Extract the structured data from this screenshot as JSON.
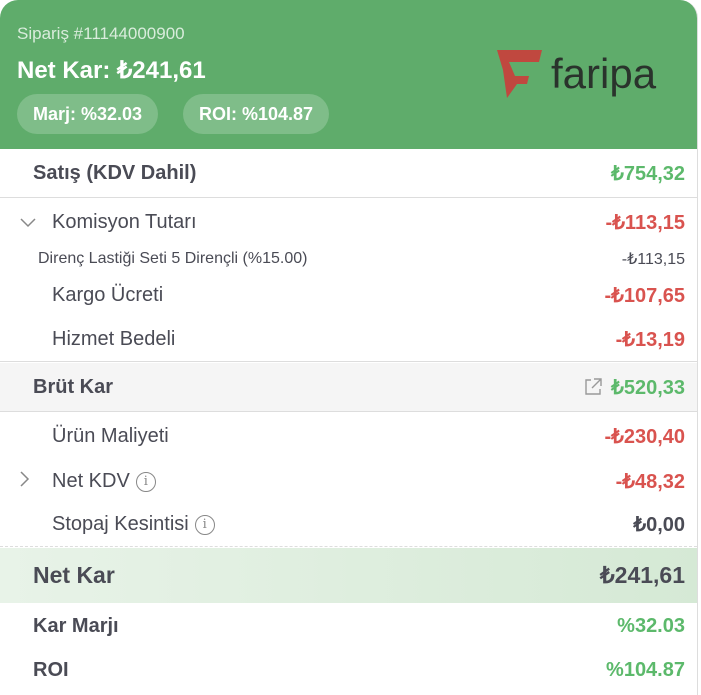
{
  "header": {
    "order": "Sipariş #11144000900",
    "net_profit": "Net Kar: ₺241,61",
    "margin_pill": "Marj: %32.03",
    "roi_pill": "ROI: %104.87",
    "logo_text": "faripa",
    "bg_color": "#5fac6b"
  },
  "rows": {
    "sales": {
      "label": "Satış (KDV Dahil)",
      "value": "₺754,32"
    },
    "commission": {
      "label": "Komisyon Tutarı",
      "value": "-₺113,15",
      "icon": "chevron-down-icon"
    },
    "commission_item": {
      "label": "Direnç Lastiği Seti 5 Dirençli (%15.00)",
      "value": "-₺113,15"
    },
    "shipping": {
      "label": "Kargo Ücreti",
      "value": "-₺107,65"
    },
    "service": {
      "label": "Hizmet Bedeli",
      "value": "-₺13,19"
    },
    "gross": {
      "label": "Brüt Kar",
      "value": "₺520,33",
      "icon": "external-link-icon"
    },
    "cost": {
      "label": "Ürün Maliyeti",
      "value": "-₺230,40"
    },
    "vat": {
      "label": "Net KDV",
      "value": "-₺48,32",
      "icon": "chevron-right-icon"
    },
    "withholding": {
      "label": "Stopaj Kesintisi",
      "value": "₺0,00"
    },
    "net": {
      "label": "Net Kar",
      "value": "₺241,61"
    },
    "margin": {
      "label": "Kar Marjı",
      "value": "%32.03"
    },
    "roi": {
      "label": "ROI",
      "value": "%104.87"
    }
  }
}
